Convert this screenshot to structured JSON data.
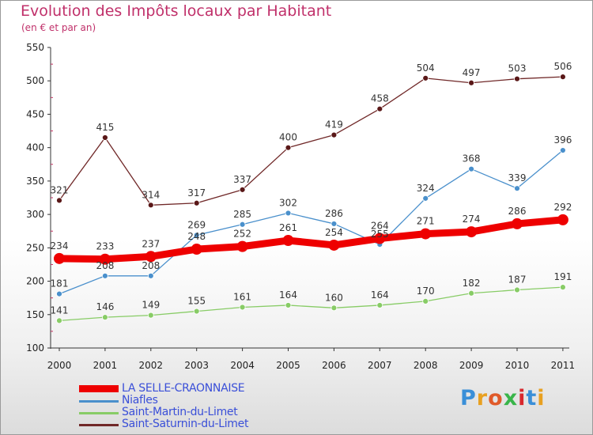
{
  "header": {
    "title": "Evolution des Impôts locaux par Habitant",
    "subtitle": "(en € et par an)"
  },
  "logo": {
    "text": "Proxiti",
    "colors": [
      "#3a8fd8",
      "#e8a020",
      "#e05a2a",
      "#39b54a",
      "#d8282d",
      "#3a8fd8",
      "#e8a020"
    ]
  },
  "chart_data": {
    "type": "line",
    "title": "Evolution des Impôts locaux par Habitant",
    "subtitle": "(en € et par an)",
    "xlabel": "",
    "ylabel": "",
    "categories": [
      "2000",
      "2001",
      "2002",
      "2003",
      "2004",
      "2005",
      "2006",
      "2007",
      "2008",
      "2009",
      "2010",
      "2011"
    ],
    "ylim": [
      100,
      550
    ],
    "yticks": [
      100,
      150,
      200,
      250,
      300,
      350,
      400,
      450,
      500,
      550
    ],
    "grid": false,
    "legend_position": "bottom-left",
    "series": [
      {
        "name": "LA SELLE-CRAONNAISE",
        "color": "#ee0000",
        "values": [
          234,
          233,
          237,
          248,
          252,
          261,
          254,
          264,
          271,
          274,
          286,
          292
        ]
      },
      {
        "name": "Niafles",
        "color": "#4a90cc",
        "values": [
          181,
          208,
          208,
          269,
          285,
          302,
          286,
          255,
          324,
          368,
          339,
          396
        ]
      },
      {
        "name": "Saint-Martin-du-Limet",
        "color": "#88cc66",
        "values": [
          141,
          146,
          149,
          155,
          161,
          164,
          160,
          164,
          170,
          182,
          187,
          191
        ]
      },
      {
        "name": "Saint-Saturnin-du-Limet",
        "color": "#702828",
        "values": [
          321,
          415,
          314,
          317,
          337,
          400,
          419,
          458,
          504,
          497,
          503,
          506
        ]
      }
    ]
  }
}
